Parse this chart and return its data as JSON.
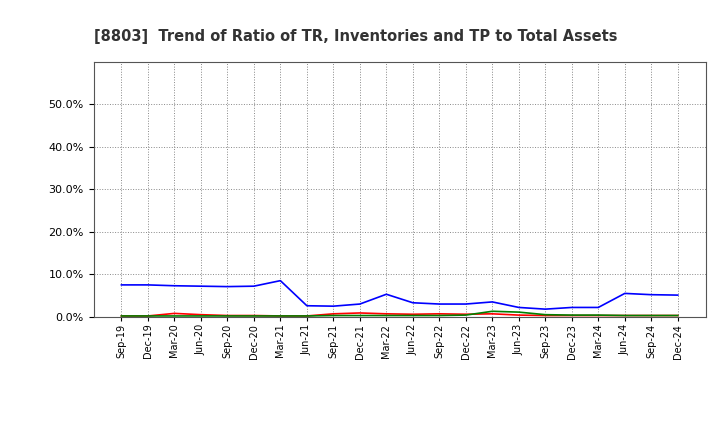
{
  "title": "[8803]  Trend of Ratio of TR, Inventories and TP to Total Assets",
  "x_labels": [
    "Sep-19",
    "Dec-19",
    "Mar-20",
    "Jun-20",
    "Sep-20",
    "Dec-20",
    "Mar-21",
    "Jun-21",
    "Sep-21",
    "Dec-21",
    "Mar-22",
    "Jun-22",
    "Sep-22",
    "Dec-22",
    "Mar-23",
    "Jun-23",
    "Sep-23",
    "Dec-23",
    "Mar-24",
    "Jun-24",
    "Sep-24",
    "Dec-24"
  ],
  "trade_receivables": [
    0.002,
    0.002,
    0.008,
    0.005,
    0.003,
    0.003,
    0.002,
    0.002,
    0.007,
    0.009,
    0.007,
    0.006,
    0.007,
    0.006,
    0.007,
    0.004,
    0.003,
    0.003,
    0.003,
    0.003,
    0.003,
    0.003
  ],
  "inventories": [
    0.075,
    0.075,
    0.073,
    0.072,
    0.071,
    0.072,
    0.085,
    0.026,
    0.025,
    0.03,
    0.053,
    0.033,
    0.03,
    0.03,
    0.035,
    0.022,
    0.018,
    0.022,
    0.022,
    0.055,
    0.052,
    0.051
  ],
  "trade_payables": [
    0.002,
    0.002,
    0.002,
    0.002,
    0.002,
    0.002,
    0.002,
    0.002,
    0.003,
    0.003,
    0.003,
    0.003,
    0.003,
    0.004,
    0.013,
    0.011,
    0.005,
    0.004,
    0.004,
    0.003,
    0.003,
    0.003
  ],
  "color_tr": "#FF0000",
  "color_inv": "#0000FF",
  "color_tp": "#008000",
  "ylim": [
    0,
    0.6
  ],
  "yticks": [
    0.0,
    0.1,
    0.2,
    0.3,
    0.4,
    0.5
  ],
  "background_color": "#FFFFFF",
  "plot_bg_color": "#FFFFFF"
}
